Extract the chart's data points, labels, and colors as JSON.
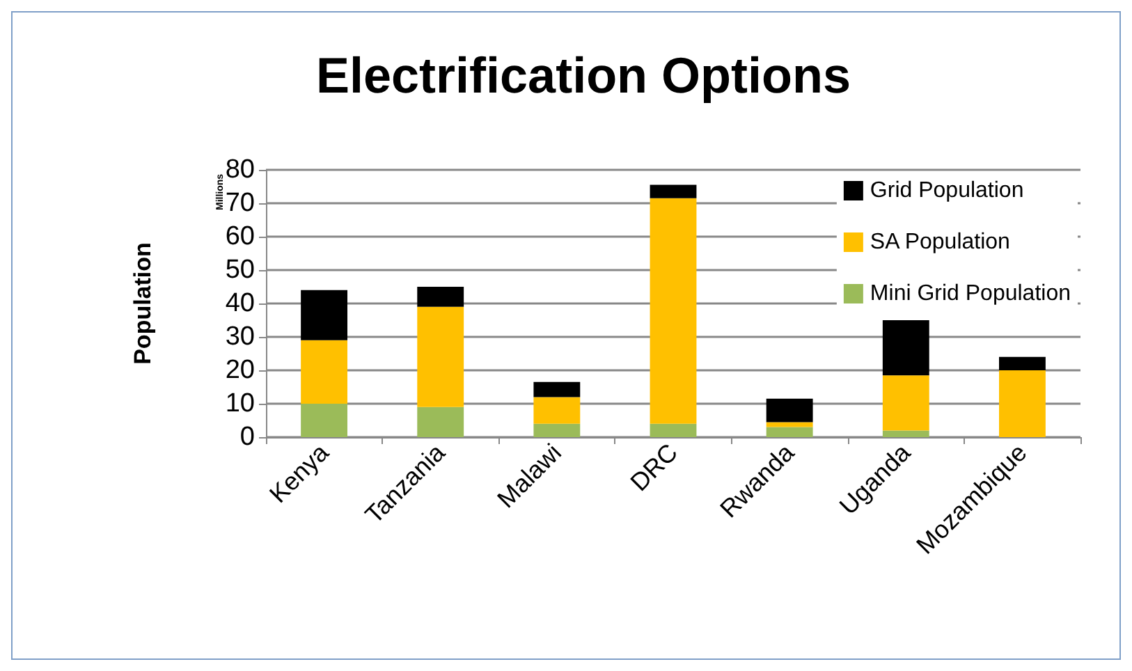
{
  "chart_data": {
    "type": "bar",
    "title": "Electrification Options",
    "ylabel": "Population",
    "annotations": [
      "Millions"
    ],
    "categories": [
      "Kenya",
      "Tanzania",
      "Malawi",
      "DRC",
      "Rwanda",
      "Uganda",
      "Mozambique"
    ],
    "stacked": true,
    "series": [
      {
        "name": "Mini Grid Population",
        "color": "#9bbb59",
        "values": [
          10,
          9,
          4,
          4,
          3,
          2,
          0
        ]
      },
      {
        "name": "SA Population",
        "color": "#ffc000",
        "values": [
          19,
          30,
          8,
          67.5,
          1.5,
          16.5,
          20
        ]
      },
      {
        "name": "Grid Population",
        "color": "#000000",
        "values": [
          15,
          6,
          4.5,
          4,
          7,
          16.5,
          4
        ]
      }
    ],
    "ylim": [
      0,
      80
    ],
    "yticks": [
      0,
      10,
      20,
      30,
      40,
      50,
      60,
      70,
      80
    ],
    "grid": "y",
    "legend": "top right"
  }
}
